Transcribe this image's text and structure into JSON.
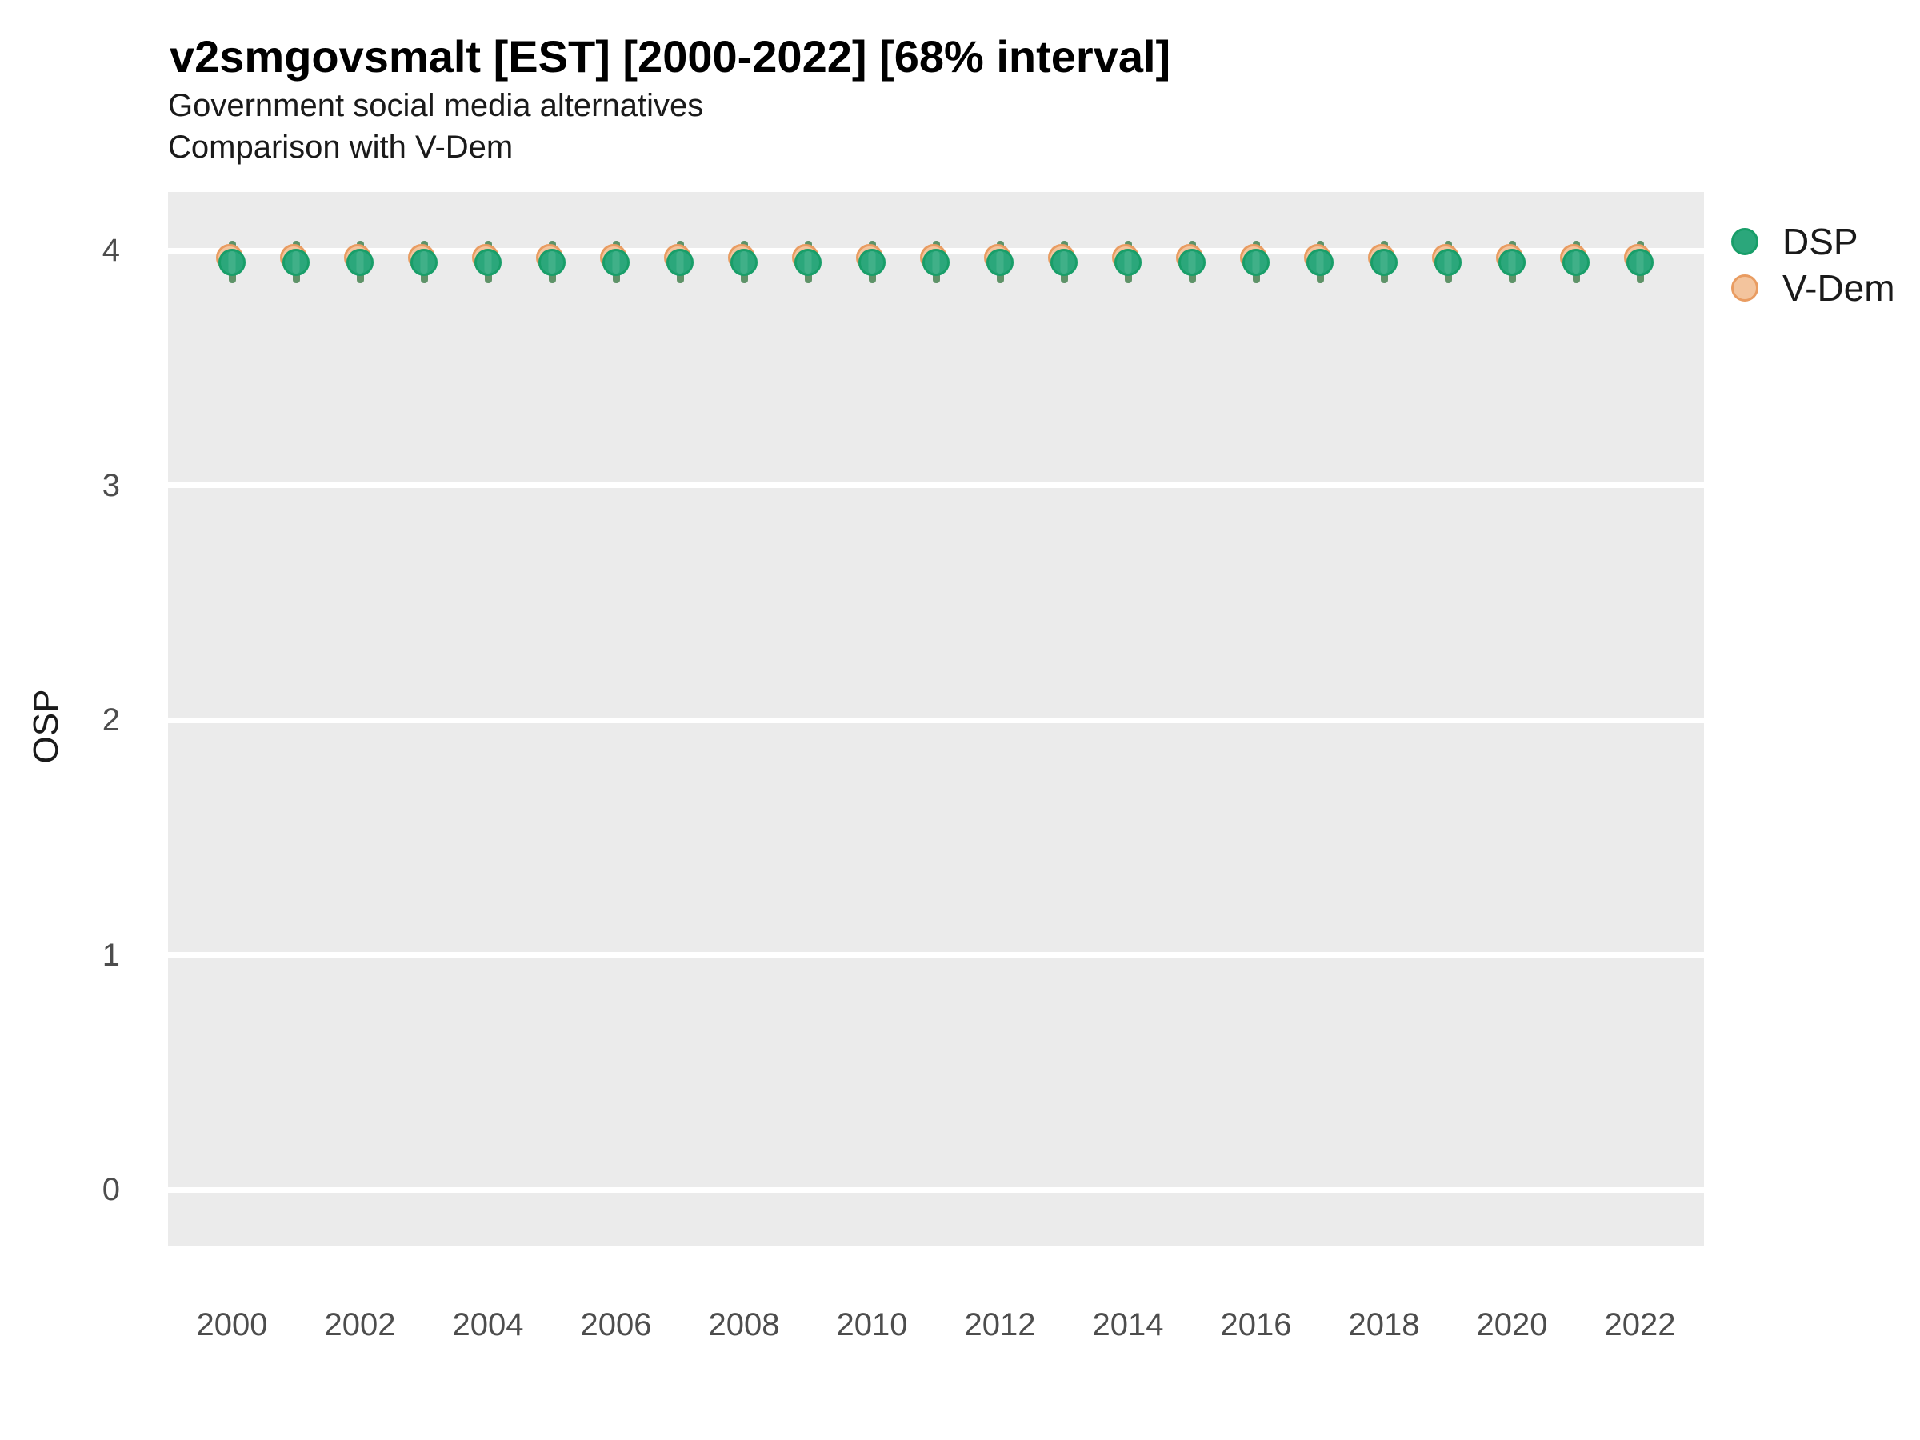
{
  "chart_data": {
    "type": "scatter",
    "title": "v2smgovsmalt [EST] [2000-2022] [68% interval]",
    "subtitle": [
      "Government social media alternatives",
      "Comparison with V-Dem"
    ],
    "xlabel": "",
    "ylabel": "OSP",
    "x": [
      2000,
      2001,
      2002,
      2003,
      2004,
      2005,
      2006,
      2007,
      2008,
      2009,
      2010,
      2011,
      2012,
      2013,
      2014,
      2015,
      2016,
      2017,
      2018,
      2019,
      2020,
      2021,
      2022
    ],
    "x_tick_labels": [
      "2000",
      "2002",
      "2004",
      "2006",
      "2008",
      "2010",
      "2012",
      "2014",
      "2016",
      "2018",
      "2020",
      "2022"
    ],
    "yticks": [
      4,
      3,
      2,
      1,
      0
    ],
    "ylim": [
      -0.25,
      4.25
    ],
    "xlim": [
      1999,
      2023
    ],
    "grid": "major horizontal white lines on gray panel, no minor grid, no axis ticks",
    "legend_position": "right-top",
    "panel_color": "#ebebeb",
    "series": [
      {
        "name": "DSP",
        "marker_fill": "#2ba77b",
        "marker_stroke": "#189e69",
        "interval_color": "#5e9368",
        "values": [
          3.95,
          3.95,
          3.95,
          3.95,
          3.95,
          3.95,
          3.95,
          3.95,
          3.95,
          3.95,
          3.95,
          3.95,
          3.95,
          3.95,
          3.95,
          3.95,
          3.95,
          3.95,
          3.95,
          3.95,
          3.95,
          3.95,
          3.95
        ],
        "interval_low": [
          3.86,
          3.86,
          3.86,
          3.86,
          3.86,
          3.86,
          3.86,
          3.86,
          3.86,
          3.86,
          3.86,
          3.86,
          3.86,
          3.86,
          3.86,
          3.86,
          3.86,
          3.86,
          3.86,
          3.86,
          3.86,
          3.86,
          3.86
        ],
        "interval_high": [
          4.04,
          4.04,
          4.04,
          4.04,
          4.04,
          4.04,
          4.04,
          4.04,
          4.04,
          4.04,
          4.04,
          4.04,
          4.04,
          4.04,
          4.04,
          4.04,
          4.04,
          4.04,
          4.04,
          4.04,
          4.04,
          4.04,
          4.04
        ]
      },
      {
        "name": "V-Dem",
        "marker_fill": "#f3c49d",
        "marker_stroke": "#e99c61",
        "values": [
          3.97,
          3.97,
          3.97,
          3.97,
          3.97,
          3.97,
          3.97,
          3.97,
          3.97,
          3.97,
          3.97,
          3.97,
          3.97,
          3.97,
          3.97,
          3.97,
          3.97,
          3.97,
          3.97,
          3.97,
          3.97,
          3.97,
          3.97
        ]
      }
    ]
  }
}
